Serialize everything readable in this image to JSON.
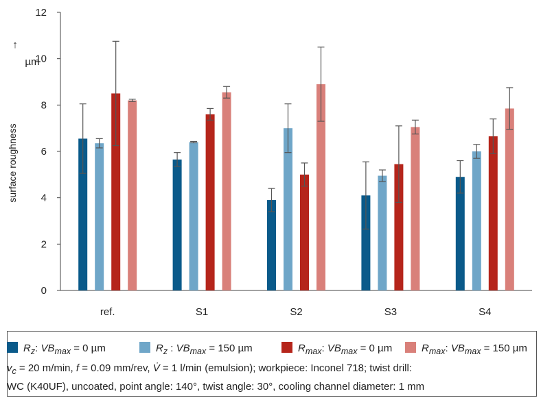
{
  "chart_data": {
    "type": "bar",
    "categories": [
      "ref.",
      "S1",
      "S2",
      "S3",
      "S4"
    ],
    "ylabel": "surface roughness",
    "yunit": "µm",
    "yarrow": "↑",
    "ylim": [
      0,
      12
    ],
    "yticks": [
      0,
      2,
      4,
      6,
      8,
      10,
      12
    ],
    "grid": false,
    "legend_position": "bottom",
    "series": [
      {
        "color": "#0a5a8a",
        "values": [
          6.55,
          5.65,
          3.9,
          4.1,
          4.9
        ],
        "errors": [
          1.5,
          0.3,
          0.5,
          1.45,
          0.7
        ]
      },
      {
        "color": "#6fa6c8",
        "values": [
          6.35,
          6.4,
          7.0,
          4.95,
          6.0
        ],
        "errors": [
          0.2,
          0.03,
          1.05,
          0.25,
          0.3
        ]
      },
      {
        "color": "#b5251b",
        "values": [
          8.5,
          7.6,
          5.0,
          5.45,
          6.65
        ],
        "errors": [
          2.25,
          0.25,
          0.5,
          1.65,
          0.75
        ]
      },
      {
        "color": "#d9807a",
        "values": [
          8.2,
          8.55,
          8.9,
          7.05,
          7.85
        ],
        "errors": [
          0.05,
          0.25,
          1.6,
          0.3,
          0.9
        ]
      }
    ]
  },
  "legend": {
    "items": [
      {
        "color": "#0a5a8a",
        "sym": "R",
        "sub": "z",
        "sep": ":",
        "vb": "VB",
        "vbsub": "max",
        "val": " = 0 µm"
      },
      {
        "color": "#6fa6c8",
        "sym": "R",
        "sub": "z",
        "sep": " :",
        "vb": "VB",
        "vbsub": "max",
        "val": " = 150 µm"
      },
      {
        "color": "#b5251b",
        "sym": "R",
        "sub": "max",
        "sep": ":",
        "vb": "VB",
        "vbsub": "max",
        "val": " = 0 µm"
      },
      {
        "color": "#d9807a",
        "sym": "R",
        "sub": "max",
        "sep": ":",
        "vb": "VB",
        "vbsub": "max",
        "val": " = 150 µm"
      }
    ],
    "note_line1": {
      "v_sym": "v",
      "v_sub": "c",
      "v_val": " = 20 m/min, ",
      "f_sym": "f",
      "f_val": " = 0.09 mm/rev, ",
      "flow_sym": "V̇",
      "rest": " = 1 l/min (emulsion); workpiece: Inconel 718; twist drill:"
    },
    "note_line2": "WC (K40UF), uncoated, point angle: 140°, twist angle: 30°, cooling channel diameter: 1 mm"
  }
}
